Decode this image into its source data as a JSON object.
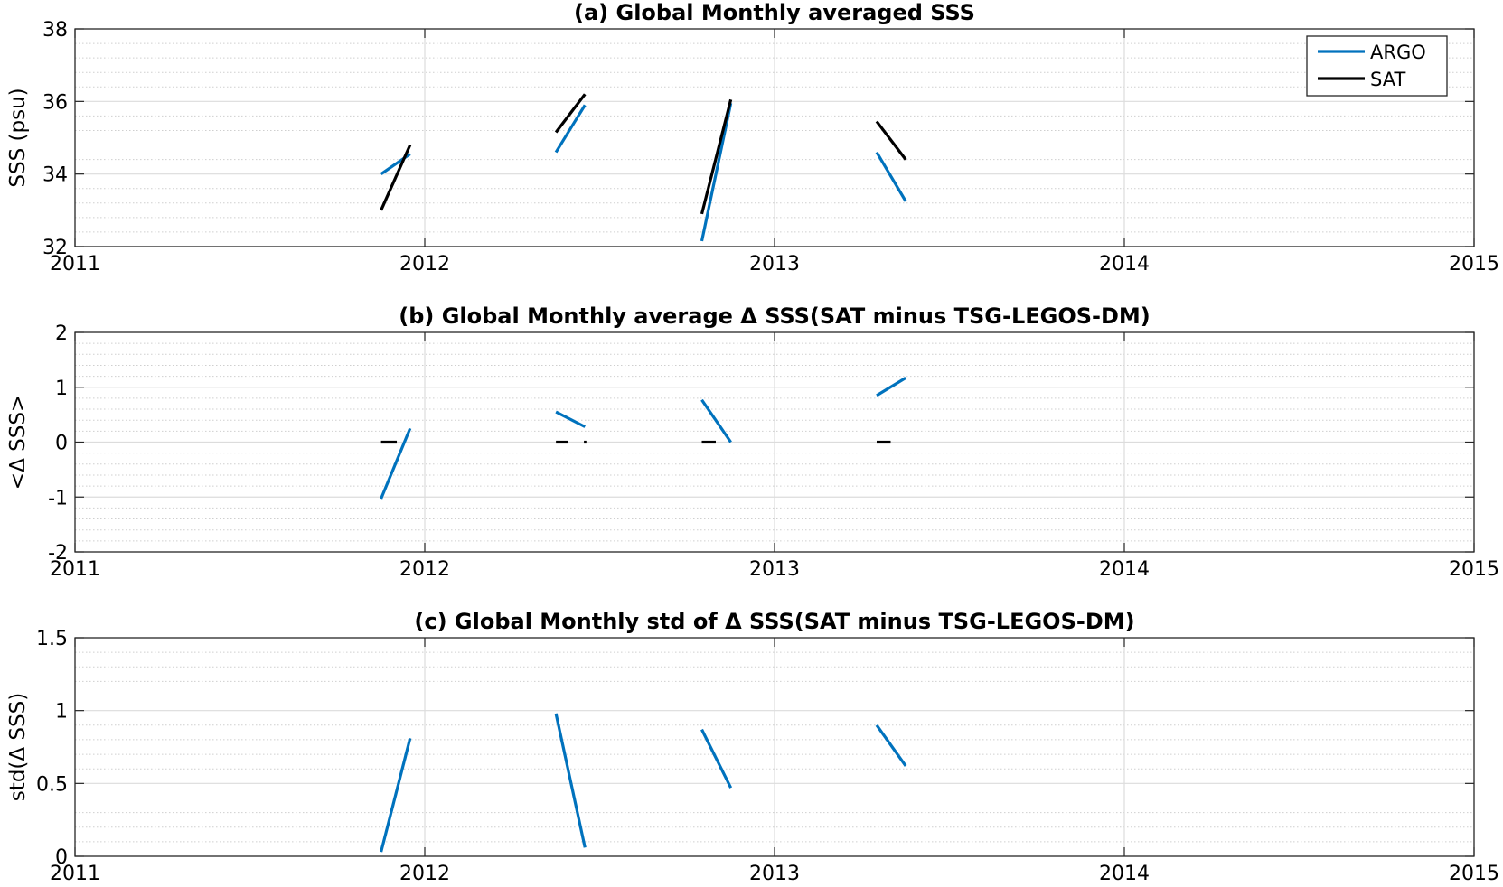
{
  "colors": {
    "argo": "#0072bd",
    "sat": "#000000",
    "grid_major": "#dcdcdc",
    "grid_minor": "#cfcfcf"
  },
  "chart_data": [
    {
      "type": "line",
      "title": "(a) Global Monthly averaged SSS",
      "xlabel": "",
      "ylabel": "SSS (psu)",
      "xlim": [
        2011,
        2015
      ],
      "ylim": [
        32,
        38
      ],
      "xticks": [
        2011,
        2012,
        2013,
        2014,
        2015
      ],
      "xtick_labels": [
        "2011",
        "2012",
        "2013",
        "2014",
        "2015"
      ],
      "yticks": [
        32,
        34,
        36,
        38
      ],
      "ytick_labels": [
        "32",
        "34",
        "36",
        "38"
      ],
      "yminor_step": 0.4,
      "grid": true,
      "legend": {
        "location": "top-right",
        "entries": [
          "ARGO",
          "SAT"
        ]
      },
      "series": [
        {
          "name": "ARGO",
          "color": "#0072bd",
          "segments": [
            [
              [
                2011.875,
                34.0
              ],
              [
                2011.958,
                34.55
              ]
            ],
            [
              [
                2012.375,
                34.6
              ],
              [
                2012.458,
                35.9
              ]
            ],
            [
              [
                2012.792,
                32.15
              ],
              [
                2012.875,
                35.95
              ]
            ],
            [
              [
                2013.292,
                34.6
              ],
              [
                2013.375,
                33.25
              ]
            ]
          ]
        },
        {
          "name": "SAT",
          "color": "#000000",
          "segments": [
            [
              [
                2011.875,
                33.0
              ],
              [
                2011.958,
                34.8
              ]
            ],
            [
              [
                2012.375,
                35.15
              ],
              [
                2012.458,
                36.2
              ]
            ],
            [
              [
                2012.792,
                32.9
              ],
              [
                2012.875,
                36.05
              ]
            ],
            [
              [
                2013.292,
                35.45
              ],
              [
                2013.375,
                34.4
              ]
            ]
          ]
        }
      ]
    },
    {
      "type": "line",
      "title": "(b) Global Monthly average Δ SSS(SAT minus TSG-LEGOS-DM)",
      "xlabel": "",
      "ylabel": "<Δ SSS>",
      "xlim": [
        2011,
        2015
      ],
      "ylim": [
        -2,
        2
      ],
      "xticks": [
        2011,
        2012,
        2013,
        2014,
        2015
      ],
      "xtick_labels": [
        "2011",
        "2012",
        "2013",
        "2014",
        "2015"
      ],
      "yticks": [
        -2,
        -1,
        0,
        1,
        2
      ],
      "ytick_labels": [
        "-2",
        "-1",
        "0",
        "1",
        "2"
      ],
      "yminor_step": 0.2,
      "grid": true,
      "series": [
        {
          "name": "",
          "color": "#0072bd",
          "segments": [
            [
              [
                2011.875,
                -1.03
              ],
              [
                2011.958,
                0.25
              ]
            ],
            [
              [
                2012.375,
                0.55
              ],
              [
                2012.458,
                0.28
              ]
            ],
            [
              [
                2012.792,
                0.77
              ],
              [
                2012.875,
                0.0
              ]
            ],
            [
              [
                2013.292,
                0.85
              ],
              [
                2013.375,
                1.17
              ]
            ]
          ]
        },
        {
          "name": "",
          "color": "#000000",
          "segments": [
            [
              [
                2011.875,
                0.0
              ],
              [
                2011.92,
                0.0
              ]
            ],
            [
              [
                2012.375,
                0.0
              ],
              [
                2012.41,
                0.0
              ]
            ],
            [
              [
                2012.455,
                0.0
              ],
              [
                2012.462,
                0.0
              ]
            ],
            [
              [
                2012.792,
                0.0
              ],
              [
                2012.832,
                0.0
              ]
            ],
            [
              [
                2013.292,
                0.0
              ],
              [
                2013.332,
                0.0
              ]
            ]
          ]
        }
      ]
    },
    {
      "type": "line",
      "title": "(c) Global Monthly std of Δ SSS(SAT minus TSG-LEGOS-DM)",
      "xlabel": "",
      "ylabel": "std(Δ SSS)",
      "xlim": [
        2011,
        2015
      ],
      "ylim": [
        0,
        1.5
      ],
      "xticks": [
        2011,
        2012,
        2013,
        2014,
        2015
      ],
      "xtick_labels": [
        "2011",
        "2012",
        "2013",
        "2014",
        "2015"
      ],
      "yticks": [
        0,
        0.5,
        1,
        1.5
      ],
      "ytick_labels": [
        "0",
        "0.5",
        "1",
        "1.5"
      ],
      "yminor_step": 0.1,
      "grid": true,
      "series": [
        {
          "name": "",
          "color": "#0072bd",
          "segments": [
            [
              [
                2011.875,
                0.03
              ],
              [
                2011.958,
                0.81
              ]
            ],
            [
              [
                2012.375,
                0.98
              ],
              [
                2012.458,
                0.06
              ]
            ],
            [
              [
                2012.792,
                0.87
              ],
              [
                2012.875,
                0.47
              ]
            ],
            [
              [
                2013.292,
                0.9
              ],
              [
                2013.375,
                0.62
              ]
            ]
          ]
        }
      ]
    }
  ]
}
